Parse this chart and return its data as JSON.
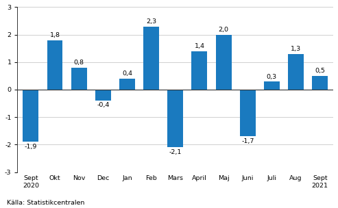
{
  "categories": [
    "Sept\n2020",
    "Okt",
    "Nov",
    "Dec",
    "Jan",
    "Feb",
    "Mars",
    "April",
    "Maj",
    "Juni",
    "Juli",
    "Aug",
    "Sept\n2021"
  ],
  "values": [
    -1.9,
    1.8,
    0.8,
    -0.4,
    0.4,
    2.3,
    -2.1,
    1.4,
    2.0,
    -1.7,
    0.3,
    1.3,
    0.5
  ],
  "bar_color": "#1a7abf",
  "ylim": [
    -3,
    3
  ],
  "yticks": [
    -3,
    -2,
    -1,
    0,
    1,
    2,
    3
  ],
  "source_text": "Källa: Statistikcentralen",
  "label_fontsize": 6.8,
  "tick_fontsize": 6.8,
  "source_fontsize": 6.8,
  "background_color": "#ffffff",
  "grid_color": "#d0d0d0",
  "zero_line_color": "#333333",
  "spine_color": "#333333"
}
